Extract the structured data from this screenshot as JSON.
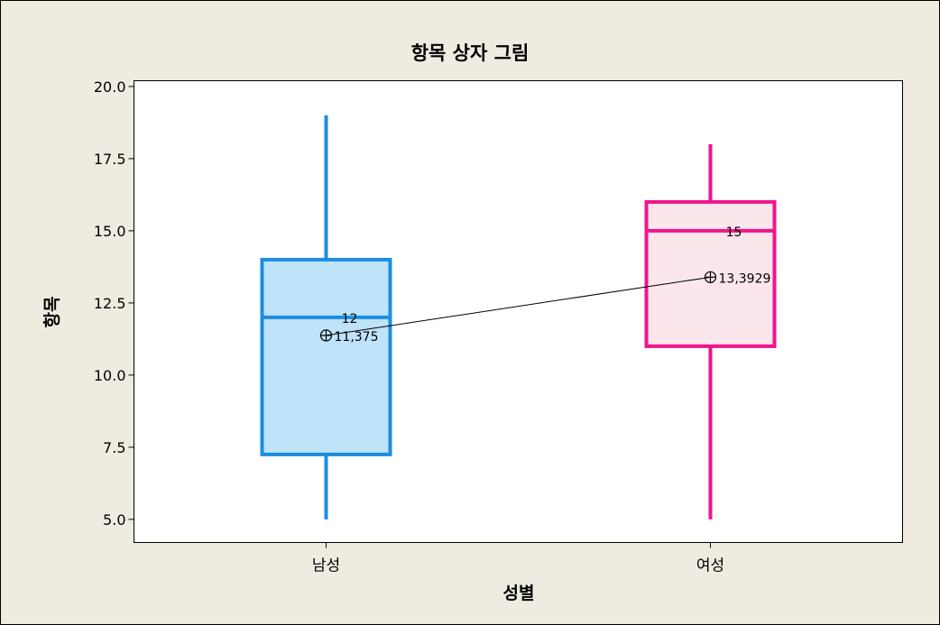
{
  "chart_data": {
    "type": "boxplot",
    "title": "항목 상자 그림",
    "xlabel": "성별",
    "ylabel": "항목",
    "ylim": [
      4.2,
      20.2
    ],
    "yticks": [
      5.0,
      7.5,
      10.0,
      12.5,
      15.0,
      17.5,
      20.0
    ],
    "ytick_labels": [
      "5.0",
      "7.5",
      "10.0",
      "12.5",
      "15.0",
      "17.5",
      "20.0"
    ],
    "categories": [
      "남성",
      "여성"
    ],
    "boxes": [
      {
        "category": "남성",
        "min": 5,
        "q1": 7.25,
        "median": 12,
        "q3": 14,
        "max": 19,
        "mean": 11.375,
        "median_label": "12",
        "mean_label": "11,375",
        "color": "#1c8ee0",
        "fill": "#bfe3f8"
      },
      {
        "category": "여성",
        "min": 5,
        "q1": 11,
        "median": 15,
        "q3": 16,
        "max": 18,
        "mean": 13.3929,
        "median_label": "15",
        "mean_label": "13,3929",
        "color": "#f0168c",
        "fill": "#fbe6ec"
      }
    ],
    "mean_connect_line": true,
    "grid": false,
    "colors": {
      "frame_bg": "#efebe0",
      "plot_bg": "#ffffff",
      "axis": "#000000"
    }
  }
}
